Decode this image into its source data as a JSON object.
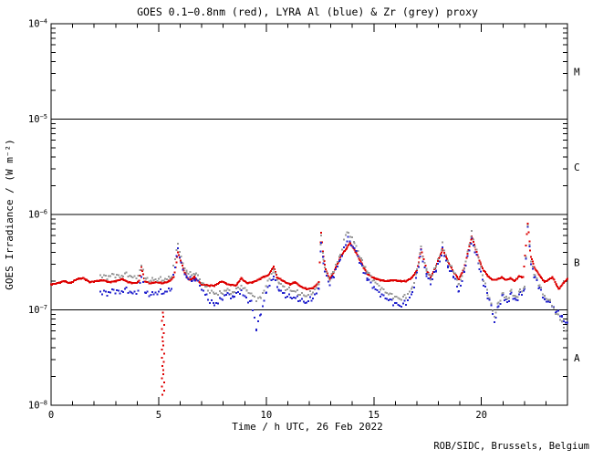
{
  "chart_data": {
    "type": "scatter",
    "title": "GOES 0.1−0.8nm (red), LYRA Al (blue) & Zr (grey) proxy",
    "xlabel": "Time / h UTC, 26 Feb 2022",
    "ylabel": "GOES Irradiance / (W m⁻²)",
    "credit": "ROB/SIDC, Brussels, Belgium",
    "x_range_hours": [
      0,
      24
    ],
    "x_major_ticks": [
      0,
      5,
      10,
      15,
      20
    ],
    "x_tick_labels": [
      "0",
      "5",
      "10",
      "15",
      "20"
    ],
    "x_minor_step_hours": 1,
    "y_log_range": [
      1e-08,
      0.0001
    ],
    "y_decades": [
      -4,
      -5,
      -6,
      -7,
      -8
    ],
    "y_tick_exponents": [
      "−4",
      "−5",
      "−6",
      "−7",
      "−8"
    ],
    "class_boundaries": [
      1e-05,
      1e-06,
      1e-07
    ],
    "class_labels": [
      "M",
      "C",
      "B",
      "A"
    ],
    "grid": "horizontal black lines at flare-class boundaries only",
    "legend_position": "encoded in title",
    "colors": {
      "goes_red": "#dd0000",
      "lyra_al_blue": "#2222cc",
      "lyra_zr_grey": "#999999",
      "axis": "#000000"
    },
    "series": [
      {
        "name": "GOES 0.1−0.8nm",
        "color_key": "goes_red",
        "dot_step_hours": 0.04,
        "jitter_decades": 0.005,
        "points": [
          [
            0,
            1.85e-07
          ],
          [
            0.3,
            1.9e-07
          ],
          [
            0.6,
            2e-07
          ],
          [
            0.9,
            1.9e-07
          ],
          [
            1.2,
            2.1e-07
          ],
          [
            1.5,
            2.15e-07
          ],
          [
            1.8,
            1.95e-07
          ],
          [
            2.1,
            2e-07
          ],
          [
            2.4,
            2.05e-07
          ],
          [
            2.7,
            1.95e-07
          ],
          [
            3.0,
            2e-07
          ],
          [
            3.3,
            2.1e-07
          ],
          [
            3.6,
            1.95e-07
          ],
          [
            3.9,
            1.9e-07
          ],
          [
            4.1,
            2e-07
          ],
          [
            4.2,
            2.8e-07
          ],
          [
            4.35,
            2e-07
          ],
          [
            4.6,
            1.9e-07
          ],
          [
            4.9,
            1.95e-07
          ],
          [
            5.2,
            1.9e-07
          ],
          [
            5.5,
            2e-07
          ],
          [
            5.7,
            2.2e-07
          ],
          [
            5.9,
            4e-07
          ],
          [
            6.1,
            2.9e-07
          ],
          [
            6.3,
            2.2e-07
          ],
          [
            6.45,
            2.05e-07
          ],
          [
            6.65,
            2.2e-07
          ],
          [
            7.0,
            1.85e-07
          ],
          [
            7.3,
            1.8e-07
          ],
          [
            7.6,
            1.8e-07
          ],
          [
            7.95,
            2e-07
          ],
          [
            8.2,
            1.85e-07
          ],
          [
            8.6,
            1.8e-07
          ],
          [
            8.85,
            2.15e-07
          ],
          [
            9.1,
            1.9e-07
          ],
          [
            9.4,
            1.95e-07
          ],
          [
            9.7,
            2.1e-07
          ],
          [
            9.85,
            2.2e-07
          ],
          [
            10.1,
            2.3e-07
          ],
          [
            10.35,
            2.85e-07
          ],
          [
            10.5,
            2.2e-07
          ],
          [
            10.8,
            2e-07
          ],
          [
            11.1,
            1.85e-07
          ],
          [
            11.35,
            1.95e-07
          ],
          [
            11.6,
            1.75e-07
          ],
          [
            11.9,
            1.65e-07
          ],
          [
            12.2,
            1.7e-07
          ],
          [
            12.45,
            1.95e-07
          ],
          [
            12.55,
            6.5e-07
          ],
          [
            12.65,
            3.6e-07
          ],
          [
            12.8,
            2.5e-07
          ],
          [
            12.95,
            2.1e-07
          ],
          [
            13.15,
            2.5e-07
          ],
          [
            13.45,
            3.6e-07
          ],
          [
            13.9,
            5e-07
          ],
          [
            14.15,
            4.1e-07
          ],
          [
            14.45,
            3e-07
          ],
          [
            14.7,
            2.4e-07
          ],
          [
            15.0,
            2.15e-07
          ],
          [
            15.3,
            2.05e-07
          ],
          [
            15.6,
            2e-07
          ],
          [
            15.9,
            2.05e-07
          ],
          [
            16.2,
            2e-07
          ],
          [
            16.5,
            2e-07
          ],
          [
            16.8,
            2.2e-07
          ],
          [
            17.0,
            2.6e-07
          ],
          [
            17.2,
            4.3e-07
          ],
          [
            17.45,
            2.6e-07
          ],
          [
            17.65,
            2.2e-07
          ],
          [
            17.9,
            2.9e-07
          ],
          [
            18.2,
            4.4e-07
          ],
          [
            18.45,
            3.2e-07
          ],
          [
            18.7,
            2.5e-07
          ],
          [
            18.95,
            2.1e-07
          ],
          [
            19.2,
            2.7e-07
          ],
          [
            19.55,
            5.9e-07
          ],
          [
            19.7,
            4.6e-07
          ],
          [
            19.9,
            3.3e-07
          ],
          [
            20.1,
            2.6e-07
          ],
          [
            20.35,
            2.2e-07
          ],
          [
            20.55,
            2.05e-07
          ],
          [
            20.75,
            2.1e-07
          ],
          [
            20.95,
            2.2e-07
          ],
          [
            21.15,
            2.05e-07
          ],
          [
            21.35,
            2.15e-07
          ],
          [
            21.55,
            2e-07
          ],
          [
            21.75,
            2.25e-07
          ],
          [
            21.95,
            2.2e-07
          ],
          [
            22.15,
            8e-07
          ],
          [
            22.3,
            3.6e-07
          ],
          [
            22.5,
            2.7e-07
          ],
          [
            22.7,
            2.3e-07
          ],
          [
            22.95,
            1.95e-07
          ],
          [
            23.3,
            2.2e-07
          ],
          [
            23.6,
            1.65e-07
          ],
          [
            23.8,
            1.9e-07
          ],
          [
            24,
            2.1e-07
          ]
        ]
      },
      {
        "name": "LYRA Al proxy",
        "color_key": "lyra_al_blue",
        "dot_step_hours": 0.08,
        "jitter_decades": 0.03,
        "points": [
          [
            2.3,
            1.55e-07
          ],
          [
            2.6,
            1.5e-07
          ],
          [
            2.9,
            1.6e-07
          ],
          [
            3.2,
            1.55e-07
          ],
          [
            3.5,
            1.65e-07
          ],
          [
            3.8,
            1.5e-07
          ],
          [
            4.05,
            1.6e-07
          ],
          [
            4.2,
            2.2e-07
          ],
          [
            4.4,
            1.5e-07
          ],
          [
            4.7,
            1.45e-07
          ],
          [
            5.0,
            1.55e-07
          ],
          [
            5.3,
            1.5e-07
          ],
          [
            5.6,
            1.7e-07
          ],
          [
            5.9,
            4.4e-07
          ],
          [
            6.05,
            3e-07
          ],
          [
            6.3,
            2.2e-07
          ],
          [
            6.55,
            2e-07
          ],
          [
            6.75,
            2.1e-07
          ],
          [
            7.0,
            1.7e-07
          ],
          [
            7.3,
            1.3e-07
          ],
          [
            7.6,
            1.15e-07
          ],
          [
            7.9,
            1.3e-07
          ],
          [
            8.2,
            1.5e-07
          ],
          [
            8.45,
            1.35e-07
          ],
          [
            8.85,
            1.6e-07
          ],
          [
            9.0,
            1.35e-07
          ],
          [
            9.3,
            1.2e-07
          ],
          [
            9.55,
            6.5e-08
          ],
          [
            9.75,
            9.5e-08
          ],
          [
            10.0,
            1.5e-07
          ],
          [
            10.35,
            2.3e-07
          ],
          [
            10.6,
            1.6e-07
          ],
          [
            10.9,
            1.4e-07
          ],
          [
            11.2,
            1.35e-07
          ],
          [
            11.5,
            1.3e-07
          ],
          [
            11.8,
            1.2e-07
          ],
          [
            12.1,
            1.3e-07
          ],
          [
            12.45,
            1.6e-07
          ],
          [
            12.55,
            5.2e-07
          ],
          [
            12.65,
            3e-07
          ],
          [
            12.8,
            2.2e-07
          ],
          [
            12.95,
            1.9e-07
          ],
          [
            13.15,
            2.3e-07
          ],
          [
            13.45,
            3.4e-07
          ],
          [
            13.8,
            5.5e-07
          ],
          [
            14.1,
            4.4e-07
          ],
          [
            14.45,
            2.9e-07
          ],
          [
            14.7,
            2.1e-07
          ],
          [
            15.0,
            1.7e-07
          ],
          [
            15.3,
            1.45e-07
          ],
          [
            15.6,
            1.3e-07
          ],
          [
            15.9,
            1.2e-07
          ],
          [
            16.2,
            1.1e-07
          ],
          [
            16.5,
            1.2e-07
          ],
          [
            16.8,
            1.5e-07
          ],
          [
            17.0,
            2.4e-07
          ],
          [
            17.2,
            4.1e-07
          ],
          [
            17.45,
            2.3e-07
          ],
          [
            17.65,
            1.9e-07
          ],
          [
            17.9,
            2.6e-07
          ],
          [
            18.2,
            4.2e-07
          ],
          [
            18.45,
            2.9e-07
          ],
          [
            18.7,
            2.2e-07
          ],
          [
            18.95,
            1.6e-07
          ],
          [
            19.2,
            2.4e-07
          ],
          [
            19.55,
            5.6e-07
          ],
          [
            19.7,
            4.2e-07
          ],
          [
            19.9,
            2.8e-07
          ],
          [
            20.1,
            1.9e-07
          ],
          [
            20.3,
            1.4e-07
          ],
          [
            20.45,
            1.1e-07
          ],
          [
            20.6,
            7.5e-08
          ],
          [
            20.8,
            1.1e-07
          ],
          [
            21.0,
            1.45e-07
          ],
          [
            21.2,
            1.2e-07
          ],
          [
            21.4,
            1.5e-07
          ],
          [
            21.6,
            1.25e-07
          ],
          [
            21.8,
            1.5e-07
          ],
          [
            22.0,
            1.6e-07
          ],
          [
            22.15,
            7.4e-07
          ],
          [
            22.3,
            3e-07
          ],
          [
            22.5,
            2.2e-07
          ],
          [
            22.7,
            1.7e-07
          ],
          [
            22.95,
            1.3e-07
          ],
          [
            23.2,
            1.15e-07
          ],
          [
            23.5,
            9.5e-08
          ],
          [
            23.75,
            8.5e-08
          ],
          [
            24,
            7e-08
          ]
        ]
      },
      {
        "name": "LYRA Zr proxy",
        "color_key": "lyra_zr_grey",
        "dot_step_hours": 0.08,
        "jitter_decades": 0.025,
        "points": [
          [
            2.3,
            2.3e-07
          ],
          [
            2.6,
            2.2e-07
          ],
          [
            2.9,
            2.35e-07
          ],
          [
            3.2,
            2.25e-07
          ],
          [
            3.5,
            2.4e-07
          ],
          [
            3.8,
            2.2e-07
          ],
          [
            4.05,
            2.3e-07
          ],
          [
            4.2,
            2.9e-07
          ],
          [
            4.4,
            2.1e-07
          ],
          [
            4.7,
            2.05e-07
          ],
          [
            5.0,
            2.1e-07
          ],
          [
            5.3,
            2.05e-07
          ],
          [
            5.6,
            2.25e-07
          ],
          [
            5.9,
            4.9e-07
          ],
          [
            6.05,
            3.5e-07
          ],
          [
            6.3,
            2.5e-07
          ],
          [
            6.55,
            2.3e-07
          ],
          [
            6.75,
            2.4e-07
          ],
          [
            7.0,
            2e-07
          ],
          [
            7.3,
            1.6e-07
          ],
          [
            7.6,
            1.5e-07
          ],
          [
            7.9,
            1.5e-07
          ],
          [
            8.2,
            1.65e-07
          ],
          [
            8.45,
            1.5e-07
          ],
          [
            8.85,
            1.8e-07
          ],
          [
            9.1,
            1.55e-07
          ],
          [
            9.3,
            1.45e-07
          ],
          [
            9.55,
            1.3e-07
          ],
          [
            9.75,
            1.4e-07
          ],
          [
            10.0,
            1.75e-07
          ],
          [
            10.35,
            2.7e-07
          ],
          [
            10.6,
            1.9e-07
          ],
          [
            10.9,
            1.65e-07
          ],
          [
            11.2,
            1.6e-07
          ],
          [
            11.5,
            1.5e-07
          ],
          [
            11.8,
            1.4e-07
          ],
          [
            12.1,
            1.5e-07
          ],
          [
            12.45,
            1.8e-07
          ],
          [
            12.55,
            6.2e-07
          ],
          [
            12.65,
            3.3e-07
          ],
          [
            12.8,
            2.4e-07
          ],
          [
            12.95,
            2.1e-07
          ],
          [
            13.15,
            2.6e-07
          ],
          [
            13.45,
            3.8e-07
          ],
          [
            13.75,
            6.8e-07
          ],
          [
            14.1,
            5e-07
          ],
          [
            14.45,
            3.3e-07
          ],
          [
            14.7,
            2.5e-07
          ],
          [
            15.0,
            2e-07
          ],
          [
            15.3,
            1.7e-07
          ],
          [
            15.6,
            1.5e-07
          ],
          [
            15.9,
            1.4e-07
          ],
          [
            16.2,
            1.3e-07
          ],
          [
            16.5,
            1.4e-07
          ],
          [
            16.8,
            1.7e-07
          ],
          [
            17.0,
            2.6e-07
          ],
          [
            17.2,
            4.5e-07
          ],
          [
            17.45,
            2.6e-07
          ],
          [
            17.65,
            2.1e-07
          ],
          [
            17.9,
            2.9e-07
          ],
          [
            18.2,
            4.8e-07
          ],
          [
            18.45,
            3.3e-07
          ],
          [
            18.7,
            2.5e-07
          ],
          [
            18.95,
            1.9e-07
          ],
          [
            19.2,
            2.6e-07
          ],
          [
            19.55,
            6.6e-07
          ],
          [
            19.7,
            4.8e-07
          ],
          [
            19.9,
            3.2e-07
          ],
          [
            20.1,
            2.1e-07
          ],
          [
            20.3,
            1.5e-07
          ],
          [
            20.45,
            1.15e-07
          ],
          [
            20.6,
            8.5e-08
          ],
          [
            20.8,
            1.2e-07
          ],
          [
            21.0,
            1.5e-07
          ],
          [
            21.2,
            1.3e-07
          ],
          [
            21.4,
            1.6e-07
          ],
          [
            21.6,
            1.35e-07
          ],
          [
            21.8,
            1.6e-07
          ],
          [
            22.0,
            1.7e-07
          ],
          [
            22.15,
            7.6e-07
          ],
          [
            22.3,
            3.2e-07
          ],
          [
            22.5,
            2.3e-07
          ],
          [
            22.7,
            1.8e-07
          ],
          [
            22.95,
            1.4e-07
          ],
          [
            23.2,
            1.2e-07
          ],
          [
            23.5,
            9e-08
          ],
          [
            23.75,
            7.5e-08
          ],
          [
            24,
            5.5e-08
          ]
        ]
      }
    ],
    "dropouts": [
      {
        "series": "GOES 0.1−0.8nm",
        "color_key": "goes_red",
        "hour": 5.2,
        "from": 1e-07,
        "to": 1.2e-08
      }
    ]
  }
}
